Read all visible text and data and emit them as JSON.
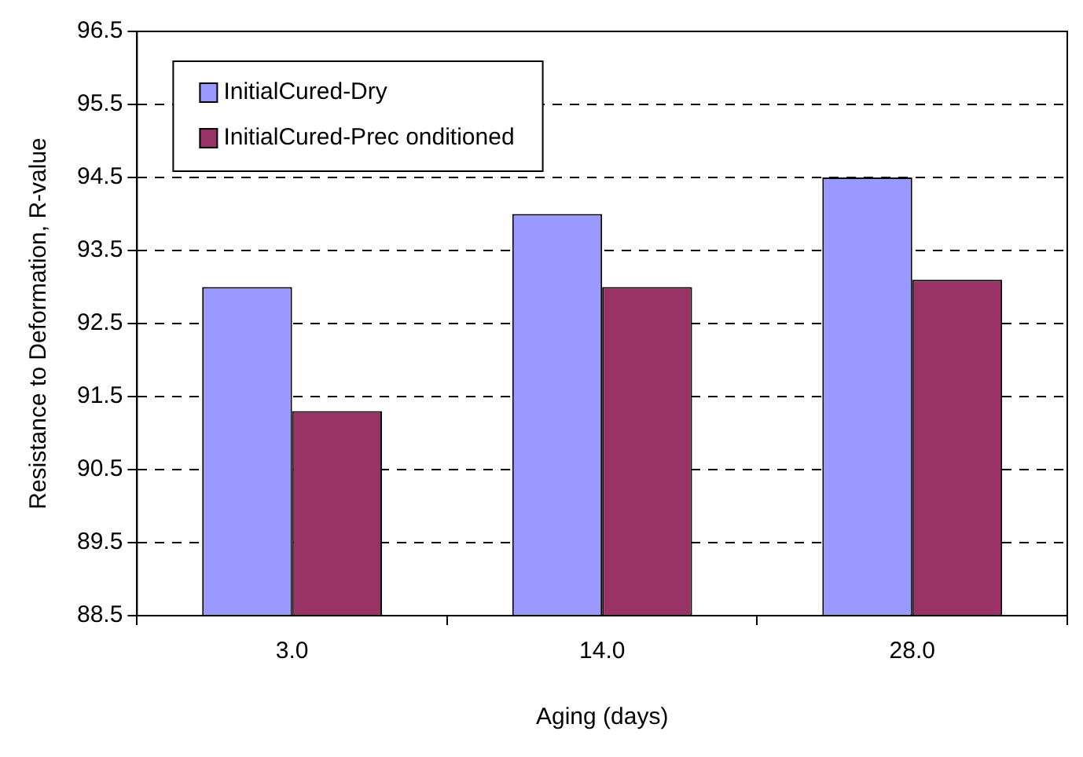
{
  "chart_data": {
    "type": "bar",
    "xlabel": "Aging (days)",
    "ylabel": "Resistance to Deformation, R-value",
    "categories": [
      "3.0",
      "14.0",
      "28.0"
    ],
    "series": [
      {
        "name": "InitialCured-Dry",
        "color": "#9999ff",
        "values": [
          93.0,
          94.0,
          94.5
        ]
      },
      {
        "name": "InitialCured-Prec onditioned",
        "color": "#993366",
        "values": [
          91.3,
          93.0,
          93.1
        ]
      }
    ],
    "ylim": [
      88.5,
      96.5
    ],
    "yticks": [
      88.5,
      89.5,
      90.5,
      91.5,
      92.5,
      93.5,
      94.5,
      95.5,
      96.5
    ],
    "grid": "y",
    "legend": "top left",
    "line_style": "dashed"
  }
}
